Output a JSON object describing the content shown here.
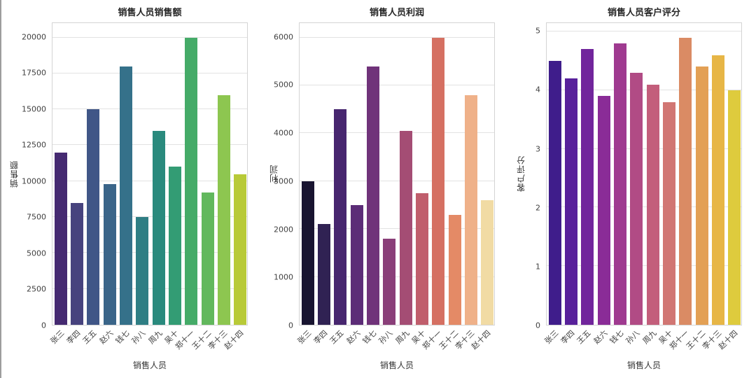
{
  "figure": {
    "background": "#ffffff",
    "grid_color": "#e2e2e2",
    "spine_color": "#d4d4d4",
    "edge_line_color": "#9d9d9d"
  },
  "chart_data": [
    {
      "type": "bar",
      "title": "销售人员销售额",
      "xlabel": "销售人员",
      "ylabel": "销售额",
      "categories": [
        "张三",
        "李四",
        "王五",
        "赵六",
        "钱七",
        "孙八",
        "周九",
        "吴十",
        "郑十一",
        "王十二",
        "李十三",
        "赵十四"
      ],
      "values": [
        12000,
        8500,
        15000,
        9800,
        18000,
        7500,
        13500,
        11000,
        20000,
        9200,
        16000,
        10500
      ],
      "yticks": [
        0,
        2500,
        5000,
        7500,
        10000,
        12500,
        15000,
        17500,
        20000
      ],
      "ylim": [
        0,
        21000
      ],
      "grid": true,
      "xtick_rotation": 45,
      "palette": "viridis",
      "colors": [
        "#452a71",
        "#47437e",
        "#405687",
        "#3a6589",
        "#35718a",
        "#2f7e84",
        "#2a8a7d",
        "#339c74",
        "#45ab68",
        "#62b85d",
        "#8dc650",
        "#b8ca38"
      ]
    },
    {
      "type": "bar",
      "title": "销售人员利润",
      "xlabel": "销售人员",
      "ylabel": "利润",
      "categories": [
        "张三",
        "李四",
        "王五",
        "赵六",
        "钱七",
        "孙八",
        "周九",
        "吴十",
        "郑十一",
        "王十二",
        "李十三",
        "赵十四"
      ],
      "values": [
        3000,
        2100,
        4500,
        2500,
        5400,
        1800,
        4050,
        2750,
        6000,
        2300,
        4800,
        2600
      ],
      "yticks": [
        0,
        1000,
        2000,
        3000,
        4000,
        5000,
        6000
      ],
      "ylim": [
        0,
        6300
      ],
      "grid": true,
      "xtick_rotation": 45,
      "palette": "magma",
      "colors": [
        "#181430",
        "#302253",
        "#47266f",
        "#5c2c77",
        "#70337a",
        "#8a3f79",
        "#a44d74",
        "#c05e6c",
        "#d57062",
        "#e48a66",
        "#efb189",
        "#f1dba4"
      ]
    },
    {
      "type": "bar",
      "title": "销售人员客户评分",
      "xlabel": "销售人员",
      "ylabel": "客户评分",
      "categories": [
        "张三",
        "李四",
        "王五",
        "赵六",
        "钱七",
        "孙八",
        "周九",
        "吴十",
        "郑十一",
        "王十二",
        "李十三",
        "赵十四"
      ],
      "values": [
        4.5,
        4.2,
        4.7,
        3.9,
        4.8,
        4.3,
        4.1,
        3.8,
        4.9,
        4.4,
        4.6,
        4.0
      ],
      "yticks": [
        0,
        1,
        2,
        3,
        4,
        5
      ],
      "ylim": [
        0,
        5.145
      ],
      "grid": true,
      "xtick_rotation": 45,
      "palette": "plasma",
      "colors": [
        "#3f1d8b",
        "#58219b",
        "#71259c",
        "#8a2c97",
        "#9f3a90",
        "#b14b85",
        "#c35e7b",
        "#d17673",
        "#da8b64",
        "#e3a055",
        "#e7b646",
        "#decb3d"
      ]
    }
  ]
}
